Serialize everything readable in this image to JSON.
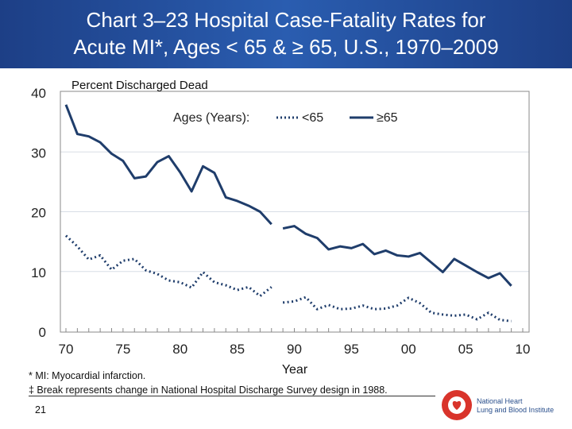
{
  "slide": {
    "title_line1": "Chart 3–23 Hospital Case-Fatality Rates for",
    "title_line2": "Acute MI*, Ages < 65 & ≥ 65, U.S., 1970–2009",
    "footnote1": "* MI: Myocardial infarction.",
    "footnote2": "‡ Break represents change in National Hospital Discharge Survey design in 1988.",
    "page_number": "21",
    "logo_line1": "National Heart",
    "logo_line2": "Lung and Blood Institute",
    "title_bar_color": "#2a5db0",
    "logo_color": "#d9342b"
  },
  "chart_data": {
    "type": "line",
    "ylabel": "Percent Discharged Dead",
    "xlabel": "Year",
    "ylim": [
      0,
      40
    ],
    "yticks": [
      "0",
      "10",
      "20",
      "30",
      "40"
    ],
    "xlim": [
      1970,
      2010
    ],
    "xtick_values": [
      1970,
      1975,
      1980,
      1985,
      1990,
      1995,
      2000,
      2005,
      2010
    ],
    "xtick_labels": [
      "70",
      "75",
      "80",
      "85",
      "90",
      "95",
      "00",
      "05",
      "10"
    ],
    "grid": "horizontal",
    "legend_title": "Ages (Years):",
    "legend_position": "top-right",
    "line_color": "#1f3d6b",
    "break_after": 1988,
    "x": [
      1970,
      1971,
      1972,
      1973,
      1974,
      1975,
      1976,
      1977,
      1978,
      1979,
      1980,
      1981,
      1982,
      1983,
      1984,
      1985,
      1986,
      1987,
      1988,
      1989,
      1990,
      1991,
      1992,
      1993,
      1994,
      1995,
      1996,
      1997,
      1998,
      1999,
      2000,
      2001,
      2002,
      2003,
      2004,
      2005,
      2006,
      2007,
      2008,
      2009
    ],
    "series": [
      {
        "name": "<65",
        "style": "dotted",
        "values": [
          16.0,
          14.2,
          12.0,
          12.7,
          10.3,
          11.8,
          12.1,
          10.2,
          9.6,
          8.5,
          8.2,
          7.3,
          9.9,
          8.2,
          7.7,
          6.9,
          7.4,
          5.9,
          7.4,
          4.8,
          5.0,
          5.7,
          3.7,
          4.4,
          3.7,
          3.8,
          4.3,
          3.7,
          3.8,
          4.3,
          5.6,
          4.7,
          3.1,
          2.8,
          2.6,
          2.8,
          2.0,
          3.1,
          1.9,
          1.7
        ]
      },
      {
        "name": "≥65",
        "style": "solid",
        "values": [
          37.9,
          33.0,
          32.6,
          31.6,
          29.7,
          28.5,
          25.6,
          25.9,
          28.3,
          29.3,
          26.6,
          23.4,
          27.6,
          26.5,
          22.4,
          21.8,
          21.0,
          20.0,
          17.9,
          17.2,
          17.6,
          16.3,
          15.6,
          13.7,
          14.2,
          13.9,
          14.6,
          12.9,
          13.5,
          12.7,
          12.5,
          13.1,
          11.5,
          9.9,
          12.1,
          11.0,
          9.9,
          8.9,
          9.7,
          7.6
        ]
      }
    ]
  }
}
